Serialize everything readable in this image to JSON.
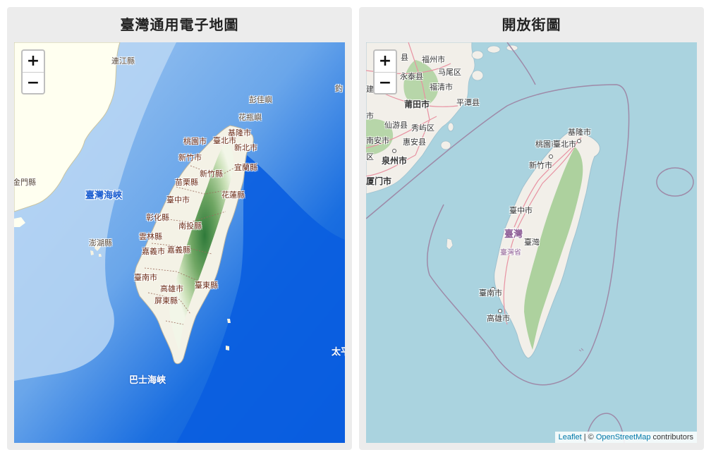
{
  "panels": {
    "left": {
      "title": "臺灣通用電子地圖",
      "zoom_in": "+",
      "zoom_out": "−",
      "labels": {
        "lianjiang": "連江縣",
        "kinmen": "金門縣",
        "pengjia": "彭佳嶼",
        "huaping": "花瓶嶼",
        "diaoyu": "釣",
        "keelung": "基隆市",
        "taipei": "臺北市",
        "taoyuan": "桃園市",
        "newtaipei": "新北市",
        "hsinchu_city": "新竹市",
        "hsinchu_county": "新竹縣",
        "yilan": "宜蘭縣",
        "miaoli": "苗栗縣",
        "taichung": "臺中市",
        "hualien": "花蓮縣",
        "changhua": "彰化縣",
        "nantou": "南投縣",
        "yunlin": "雲林縣",
        "chiayi_city": "嘉義市",
        "chiayi_county": "嘉義縣",
        "tainan": "臺南市",
        "kaohsiung": "高雄市",
        "taitung": "臺東縣",
        "pingtung": "屏東縣",
        "penghu": "澎湖縣",
        "strait": "臺灣海峽",
        "bashi": "巴士海峽",
        "pacific": "太平"
      }
    },
    "right": {
      "title": "開放街圖",
      "zoom_in": "+",
      "zoom_out": "−",
      "labels": {
        "fuzhou": "福州市",
        "mawei": "马尾区",
        "yongtai": "永泰县",
        "fuqing": "福清市",
        "putian": "莆田市",
        "pingtan": "平潭县",
        "xianyou": "仙游县",
        "xiuyu": "秀屿区",
        "nanan": "南安市",
        "huian": "惠安县",
        "quanzhou": "泉州市",
        "xiamen": "厦门市",
        "jian": "建",
        "zu": "县",
        "shi": "市",
        "qu": "区",
        "keelung": "基隆市",
        "taipei": "臺北市",
        "taoyuan": "桃園市",
        "hsinchu": "新竹市",
        "taichung": "臺中市",
        "taiwan_big": "臺灣",
        "taiwan": "臺灣",
        "province": "臺灣省",
        "tainan": "臺南市",
        "kaohsiung": "高雄市"
      },
      "attribution": {
        "leaflet": "Leaflet",
        "separator": " | © ",
        "osm": "OpenStreetMap",
        "contributors": " contributors"
      }
    }
  },
  "colors": {
    "deep_sea": "#0055d8",
    "shallow_sea": "#9cc3ee",
    "land_china_left": "#fffff0",
    "osm_sea": "#aad3df",
    "osm_land": "#f2efe9",
    "osm_forest": "#add19e",
    "osm_border": "#9e8aa8",
    "road": "#e892a2"
  }
}
